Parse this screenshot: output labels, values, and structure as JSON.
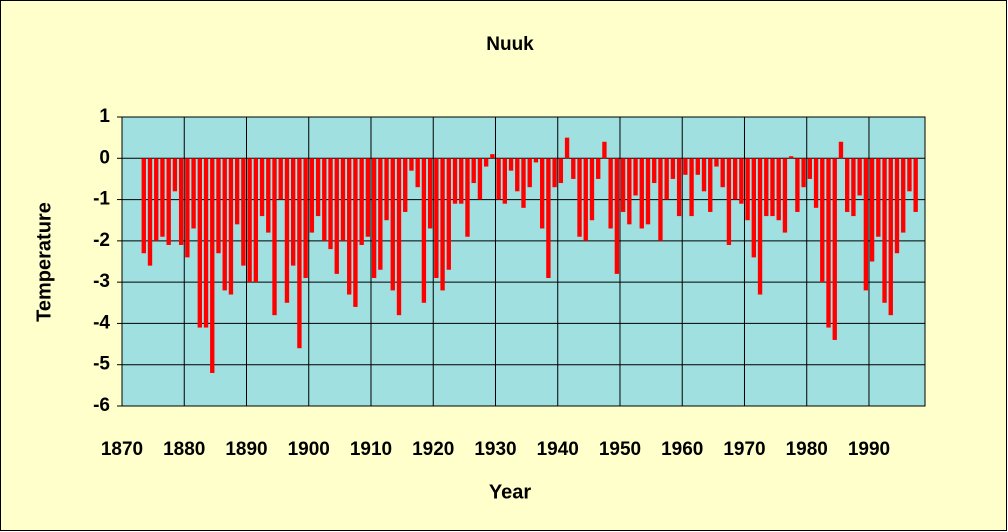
{
  "chart_data": {
    "type": "bar",
    "title": "Nuuk",
    "x_label": "Year",
    "y_label": "Temperature",
    "x": [
      1873,
      1874,
      1875,
      1876,
      1877,
      1878,
      1879,
      1880,
      1881,
      1882,
      1883,
      1884,
      1885,
      1886,
      1887,
      1888,
      1889,
      1890,
      1891,
      1892,
      1893,
      1894,
      1895,
      1896,
      1897,
      1898,
      1899,
      1900,
      1901,
      1902,
      1903,
      1904,
      1905,
      1906,
      1907,
      1908,
      1909,
      1910,
      1911,
      1912,
      1913,
      1914,
      1915,
      1916,
      1917,
      1918,
      1919,
      1920,
      1921,
      1922,
      1923,
      1924,
      1925,
      1926,
      1927,
      1928,
      1929,
      1930,
      1931,
      1932,
      1933,
      1934,
      1935,
      1936,
      1937,
      1938,
      1939,
      1940,
      1941,
      1942,
      1943,
      1944,
      1945,
      1946,
      1947,
      1948,
      1949,
      1950,
      1951,
      1952,
      1953,
      1954,
      1955,
      1956,
      1957,
      1958,
      1959,
      1960,
      1961,
      1962,
      1963,
      1964,
      1965,
      1966,
      1967,
      1968,
      1969,
      1970,
      1971,
      1972,
      1973,
      1974,
      1975,
      1976,
      1977,
      1978,
      1979,
      1980,
      1981,
      1982,
      1983,
      1984,
      1985,
      1986,
      1987,
      1988,
      1989,
      1990,
      1991,
      1992,
      1993,
      1994,
      1995,
      1996,
      1997
    ],
    "values": [
      -2.3,
      -2.6,
      -2.0,
      -1.9,
      -2.1,
      -0.8,
      -2.1,
      -2.4,
      -1.7,
      -4.1,
      -4.1,
      -5.2,
      -2.3,
      -3.2,
      -3.3,
      -1.6,
      -2.6,
      -3.0,
      -3.0,
      -1.4,
      -1.8,
      -3.8,
      -1.0,
      -3.5,
      -2.6,
      -4.6,
      -2.9,
      -1.8,
      -1.4,
      -2.0,
      -2.2,
      -2.8,
      -2.0,
      -3.3,
      -3.6,
      -2.1,
      -1.9,
      -2.9,
      -2.7,
      -1.5,
      -3.2,
      -3.8,
      -1.3,
      -0.3,
      -0.7,
      -3.5,
      -1.7,
      -2.9,
      -3.2,
      -2.7,
      -1.1,
      -1.1,
      -1.9,
      -0.6,
      -1.0,
      -0.2,
      0.1,
      -1.0,
      -1.1,
      -0.3,
      -0.8,
      -1.2,
      -0.7,
      -0.1,
      -1.7,
      -2.9,
      -0.7,
      -0.6,
      0.5,
      -0.5,
      -1.9,
      -2.0,
      -1.5,
      -0.5,
      0.4,
      -1.7,
      -2.8,
      -1.3,
      -1.6,
      -0.9,
      -1.7,
      -1.6,
      -0.6,
      -2.0,
      -1.0,
      -0.5,
      -1.4,
      -0.4,
      -1.4,
      -0.4,
      -0.8,
      -1.3,
      -0.2,
      -0.7,
      -2.1,
      -1.0,
      -1.1,
      -1.5,
      -2.4,
      -3.3,
      -1.4,
      -1.4,
      -1.5,
      -1.8,
      0.05,
      -1.3,
      -0.7,
      -0.5,
      -1.2,
      -3.0,
      -4.1,
      -4.4,
      0.4,
      -1.3,
      -1.4,
      -0.9,
      -3.2,
      -2.5,
      -1.9,
      -3.5,
      -3.8,
      -2.3,
      -1.8,
      -0.8,
      -1.3
    ],
    "color": "#ff0000",
    "plot_background": "#a0e0e0",
    "background": "#ffffcc",
    "xlim": [
      1870,
      1999
    ],
    "xticks": [
      1870,
      1880,
      1890,
      1900,
      1910,
      1920,
      1930,
      1940,
      1950,
      1960,
      1970,
      1980,
      1990
    ],
    "ylim": [
      -6,
      1
    ],
    "yticks": [
      -6,
      -5,
      -4,
      -3,
      -2,
      -1,
      0,
      1
    ],
    "grid": true
  }
}
